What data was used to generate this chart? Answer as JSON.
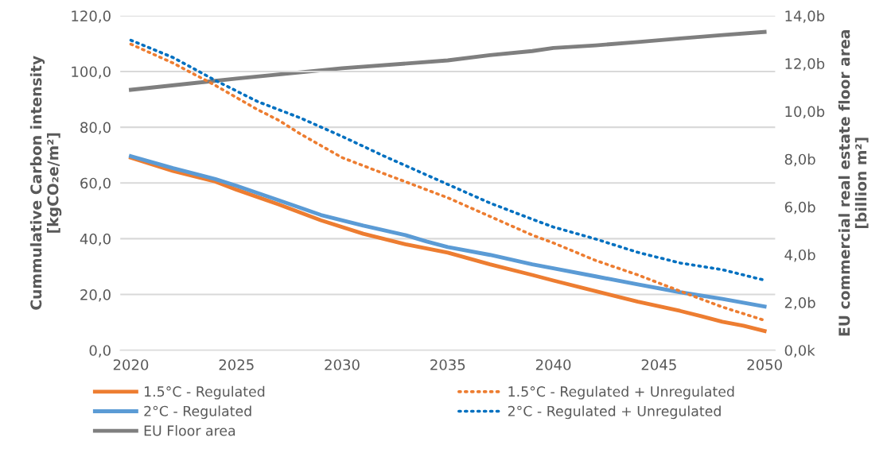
{
  "chart_data": {
    "type": "line",
    "ylabel": "Cummulative Carbon intensity\n[kgCO₂e/m²]",
    "y2label": "EU commercial real estate floor area\n[billion m²]",
    "xlim": [
      2019.5,
      2050.5
    ],
    "xticks": [
      2020,
      2025,
      2030,
      2035,
      2040,
      2045,
      2050
    ],
    "ylim": [
      0,
      120
    ],
    "yticks": [
      {
        "value": 0,
        "label": "0,0"
      },
      {
        "value": 20,
        "label": "20,0"
      },
      {
        "value": 40,
        "label": "40,0"
      },
      {
        "value": 60,
        "label": "60,0"
      },
      {
        "value": 80,
        "label": "80,0"
      },
      {
        "value": 100,
        "label": "100,0"
      },
      {
        "value": 120,
        "label": "120,0"
      }
    ],
    "y2lim": [
      0,
      14
    ],
    "y2ticks": [
      {
        "value": 0,
        "label": "0,0k"
      },
      {
        "value": 2,
        "label": "2,0b"
      },
      {
        "value": 4,
        "label": "4,0b"
      },
      {
        "value": 6,
        "label": "6,0b"
      },
      {
        "value": 8,
        "label": "8,0b"
      },
      {
        "value": 10,
        "label": "10,0b"
      },
      {
        "value": 12,
        "label": "12,0b"
      },
      {
        "value": 14,
        "label": "14,0b"
      }
    ],
    "grid": "y",
    "legend": "bottom",
    "marker": "none",
    "series": [
      {
        "name": "1.5°C - Regulated",
        "color": "#ed7d31",
        "line_style": "solid",
        "x": [
          2020,
          2022,
          2024,
          2025,
          2027,
          2029,
          2031,
          2033,
          2035,
          2037,
          2039,
          2040,
          2042,
          2044,
          2046,
          2047,
          2048,
          2049,
          2050
        ],
        "values": [
          69.1,
          64.3,
          60.5,
          57.6,
          52.3,
          46.6,
          41.8,
          38,
          35,
          30.8,
          27,
          25,
          21.2,
          17.4,
          14.1,
          12.2,
          10.2,
          8.8,
          6.9
        ]
      },
      {
        "name": "2°C - Regulated",
        "color": "#5b9bd5",
        "line_style": "solid",
        "x": [
          2020,
          2022,
          2024,
          2025,
          2027,
          2029,
          2031,
          2033,
          2034,
          2035,
          2037,
          2039,
          2040,
          2042,
          2044,
          2046,
          2048,
          2050
        ],
        "values": [
          69.6,
          65.3,
          61.4,
          59,
          53.8,
          48.5,
          44.7,
          41.3,
          39,
          37,
          34.2,
          30.8,
          29.4,
          26.5,
          23.6,
          20.8,
          18.4,
          15.7
        ]
      },
      {
        "name": "EU Floor area",
        "color": "#7f7f7f",
        "line_style": "solid",
        "axis": "y2",
        "x": [
          2020,
          2025,
          2030,
          2035,
          2037,
          2039,
          2040,
          2042,
          2044,
          2046,
          2048,
          2050
        ],
        "values": [
          10.9,
          11.37,
          11.8,
          12.13,
          12.35,
          12.52,
          12.65,
          12.76,
          12.9,
          13.05,
          13.19,
          13.32
        ]
      },
      {
        "name": "1.5°C - Regulated + Unregulated",
        "color": "#ed7d31",
        "line_style": "dotted",
        "x": [
          2020,
          2022,
          2024,
          2026,
          2027,
          2028,
          2029,
          2030,
          2032,
          2035,
          2037,
          2039,
          2040,
          2042,
          2044,
          2046,
          2048,
          2050
        ],
        "values": [
          109.8,
          103,
          95,
          86.3,
          82.5,
          77.7,
          73.4,
          69.1,
          63.3,
          54.7,
          48,
          41.3,
          38.5,
          32.2,
          27,
          21.2,
          15.5,
          10.7
        ]
      },
      {
        "name": "2°C - Regulated + Unregulated",
        "color": "#0070c0",
        "line_style": "dotted",
        "x": [
          2020,
          2022,
          2024,
          2026,
          2028,
          2030,
          2032,
          2035,
          2037,
          2039,
          2040,
          2042,
          2044,
          2046,
          2048,
          2050
        ],
        "values": [
          111.2,
          105,
          96.8,
          89.2,
          83.4,
          76.7,
          69.6,
          59.5,
          52.8,
          47,
          44.2,
          39.9,
          35.1,
          31.3,
          28.9,
          25.1
        ]
      }
    ]
  }
}
